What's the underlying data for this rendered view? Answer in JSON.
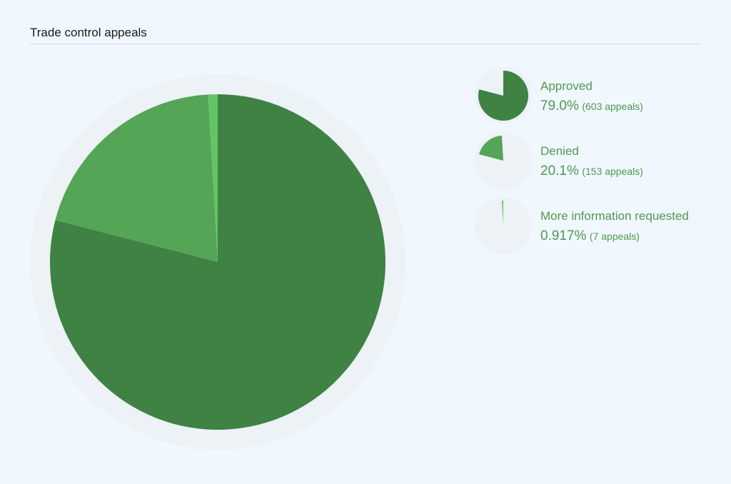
{
  "header": {
    "title": "Trade control appeals"
  },
  "colors": {
    "track": "#edf2f6",
    "text": "#4e9a4d"
  },
  "chart_data": {
    "type": "pie",
    "title": "Trade control appeals",
    "slices": [
      {
        "label": "Approved",
        "value": 603,
        "percent": "79.0%",
        "count_text": "(603 appeals)",
        "color": "#3f8244"
      },
      {
        "label": "Denied",
        "value": 153,
        "percent": "20.1%",
        "count_text": "(153 appeals)",
        "color": "#54a556"
      },
      {
        "label": "More information requested",
        "value": 7,
        "percent": "0.917%",
        "count_text": "(7 appeals)",
        "color": "#62c466"
      }
    ]
  }
}
